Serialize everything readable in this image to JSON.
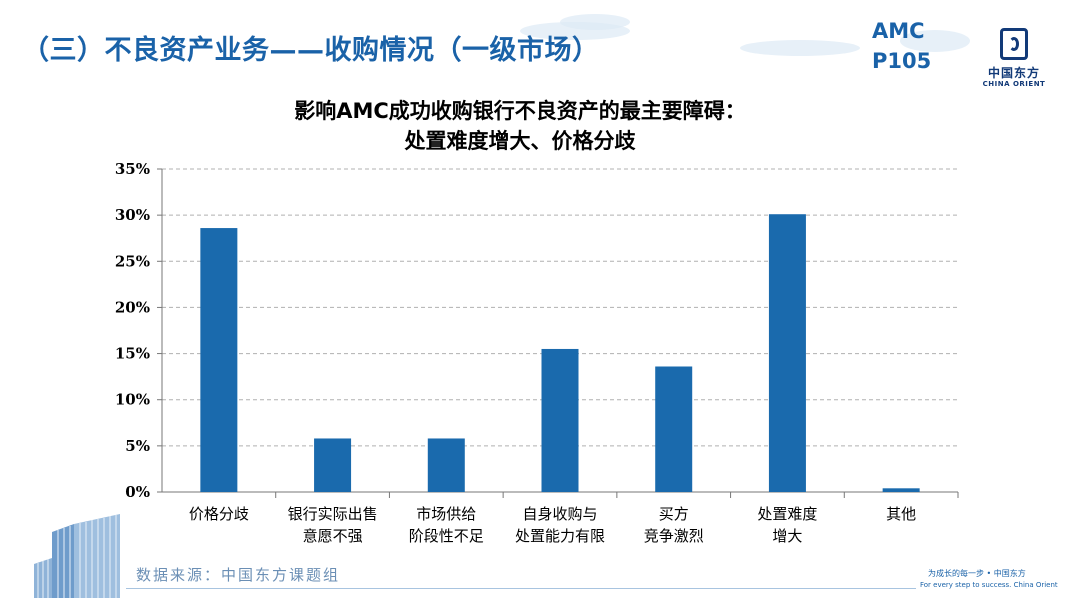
{
  "header": {
    "section_title": "（三）不良资产业务——收购情况（一级市场）",
    "code_line1": "AMC",
    "code_line2": "P105"
  },
  "logo": {
    "name_cn": "中国东方",
    "name_en": "CHINA ORIENT"
  },
  "chart_title_line1": "影响AMC成功收购银行不良资产的最主要障碍：",
  "chart_title_line2": "处置难度增大、价格分歧",
  "chart_data": {
    "type": "bar",
    "categories": [
      [
        "价格分歧"
      ],
      [
        "银行实际出售",
        "意愿不强"
      ],
      [
        "市场供给",
        "阶段性不足"
      ],
      [
        "自身收购与",
        "处置能力有限"
      ],
      [
        "买方",
        "竞争激烈"
      ],
      [
        "处置难度",
        "增大"
      ],
      [
        "其他"
      ]
    ],
    "values": [
      28.6,
      5.8,
      5.8,
      15.5,
      13.6,
      30.1,
      0.4
    ],
    "ylim": [
      0,
      35
    ],
    "yticks": [
      "0%",
      "5%",
      "10%",
      "15%",
      "20%",
      "25%",
      "30%",
      "35%"
    ],
    "ytick_values": [
      0,
      5,
      10,
      15,
      20,
      25,
      30,
      35
    ],
    "grid": true,
    "bar_color": "#1a6aad",
    "grid_color": "#b0b0b0"
  },
  "footer": {
    "source": "数据来源：中国东方课题组",
    "slogan_cn": "为成长的每一步 • 中国东方",
    "slogan_en": "For every step to success. China Orient"
  },
  "colors": {
    "accent": "#1a62a8",
    "logo": "#123a78"
  }
}
